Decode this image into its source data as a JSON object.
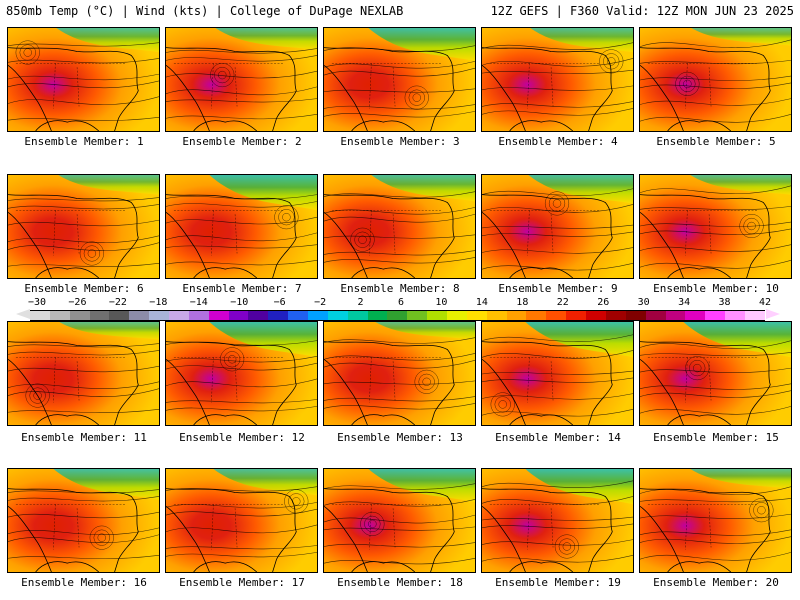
{
  "header": {
    "title": "850mb Temp (°C) | Wind (kts) | College of DuPage NEXLAB",
    "run_info": "12Z GEFS | F360 Valid: 12Z MON JUN 23 2025"
  },
  "panels": [
    {
      "label": "Ensemble Member: 1",
      "warm": 0.85,
      "cool_north": 0.55
    },
    {
      "label": "Ensemble Member: 2",
      "warm": 0.8,
      "cool_north": 0.5
    },
    {
      "label": "Ensemble Member: 3",
      "warm": 0.55,
      "cool_north": 0.75
    },
    {
      "label": "Ensemble Member: 4",
      "warm": 0.8,
      "cool_north": 0.55
    },
    {
      "label": "Ensemble Member: 5",
      "warm": 0.85,
      "cool_north": 0.4
    },
    {
      "label": "Ensemble Member: 6",
      "warm": 0.75,
      "cool_north": 0.45
    },
    {
      "label": "Ensemble Member: 7",
      "warm": 0.75,
      "cool_north": 0.8
    },
    {
      "label": "Ensemble Member: 8",
      "warm": 0.7,
      "cool_north": 0.6
    },
    {
      "label": "Ensemble Member: 9",
      "warm": 0.8,
      "cool_north": 0.65
    },
    {
      "label": "Ensemble Member: 10",
      "warm": 0.85,
      "cool_north": 0.45
    },
    {
      "label": "Ensemble Member: 11",
      "warm": 0.6,
      "cool_north": 0.4
    },
    {
      "label": "Ensemble Member: 12",
      "warm": 0.85,
      "cool_north": 0.8
    },
    {
      "label": "Ensemble Member: 13",
      "warm": 0.55,
      "cool_north": 0.4
    },
    {
      "label": "Ensemble Member: 14",
      "warm": 0.8,
      "cool_north": 0.8
    },
    {
      "label": "Ensemble Member: 15",
      "warm": 0.8,
      "cool_north": 0.8
    },
    {
      "label": "Ensemble Member: 16",
      "warm": 0.65,
      "cool_north": 0.7
    },
    {
      "label": "Ensemble Member: 17",
      "warm": 0.7,
      "cool_north": 0.6
    },
    {
      "label": "Ensemble Member: 18",
      "warm": 0.85,
      "cool_north": 0.75
    },
    {
      "label": "Ensemble Member: 19",
      "warm": 0.85,
      "cool_north": 0.8
    },
    {
      "label": "Ensemble Member: 20",
      "warm": 0.8,
      "cool_north": 0.45
    }
  ],
  "scale": {
    "ticks": [
      "−30",
      "−26",
      "−22",
      "−18",
      "−14",
      "−10",
      "−6",
      "−2",
      "2",
      "6",
      "10",
      "14",
      "18",
      "22",
      "26",
      "30",
      "34",
      "38",
      "42"
    ],
    "colors": [
      "#d8d8d8",
      "#b8b8b8",
      "#909090",
      "#707070",
      "#585858",
      "#8c8ca8",
      "#a8b4d8",
      "#c8a8e8",
      "#b070e0",
      "#d000d0",
      "#8000c8",
      "#5000a0",
      "#2020c0",
      "#2060f0",
      "#00a0ff",
      "#00d0e0",
      "#00c8a0",
      "#00b050",
      "#30a030",
      "#70c020",
      "#b0e000",
      "#e8f000",
      "#ffe000",
      "#ffc000",
      "#ffa000",
      "#ff7800",
      "#ff5000",
      "#f02000",
      "#d00000",
      "#a00000",
      "#800000",
      "#a00040",
      "#c00080",
      "#e000c0",
      "#ff40ff",
      "#ff90ff",
      "#ffc8ff"
    ]
  }
}
